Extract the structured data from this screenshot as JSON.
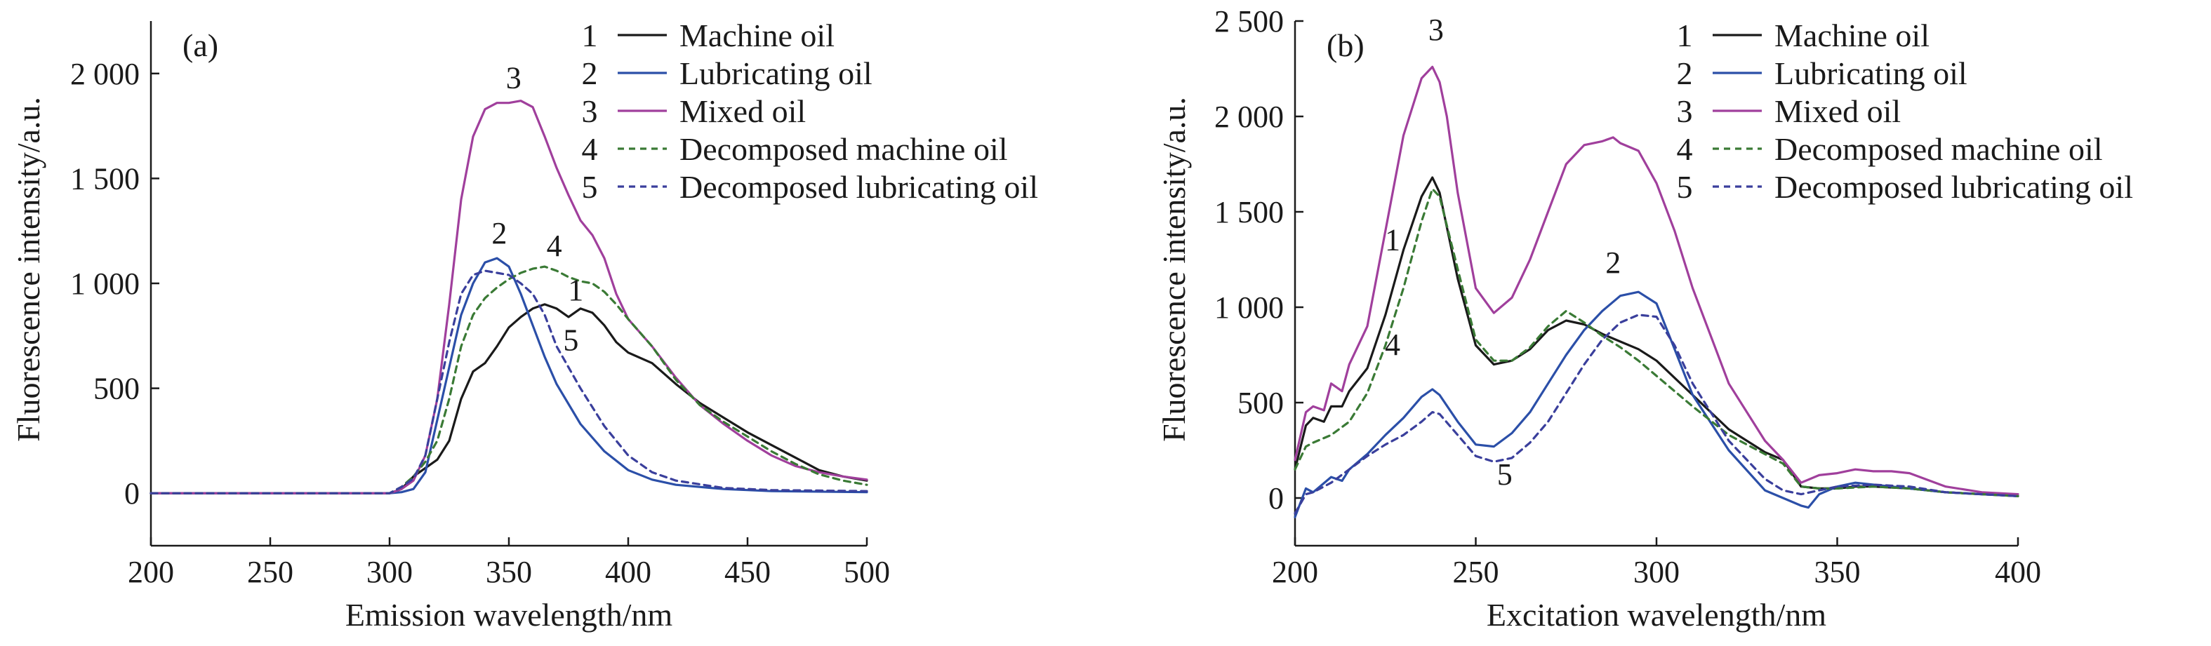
{
  "chart_data": [
    {
      "type": "line",
      "panel_label": "(a)",
      "xlabel": "Emission wavelength/nm",
      "ylabel": "Fluorescence intensity/a.u.",
      "xlim": [
        200,
        500
      ],
      "ylim": [
        -250,
        2250
      ],
      "xticks": [
        200,
        250,
        300,
        350,
        400,
        450,
        500
      ],
      "xtick_labels": [
        "200",
        "250",
        "300",
        "350",
        "400",
        "450",
        "500"
      ],
      "yticks": [
        0,
        500,
        1000,
        1500,
        2000
      ],
      "ytick_labels": [
        "0",
        "500",
        "1 000",
        "1 500",
        "2 000"
      ],
      "legend_position": "top-right",
      "series": [
        {
          "name": "Machine oil",
          "num": "1",
          "color": "#1a1a1a",
          "dash": "solid",
          "x": [
            200,
            250,
            280,
            300,
            305,
            310,
            320,
            325,
            330,
            335,
            340,
            345,
            350,
            355,
            360,
            365,
            370,
            375,
            380,
            385,
            390,
            395,
            400,
            410,
            420,
            430,
            440,
            450,
            460,
            470,
            480,
            490,
            500
          ],
          "y": [
            0,
            0,
            0,
            0,
            20,
            80,
            160,
            250,
            450,
            580,
            620,
            700,
            790,
            840,
            880,
            900,
            880,
            840,
            880,
            860,
            800,
            720,
            670,
            620,
            520,
            430,
            360,
            290,
            230,
            170,
            110,
            80,
            60
          ]
        },
        {
          "name": "Lubricating oil",
          "num": "2",
          "color": "#2b4fa8",
          "dash": "solid",
          "x": [
            200,
            280,
            300,
            305,
            310,
            315,
            320,
            325,
            330,
            335,
            340,
            345,
            350,
            355,
            360,
            365,
            370,
            380,
            390,
            400,
            410,
            420,
            440,
            460,
            500
          ],
          "y": [
            0,
            0,
            0,
            5,
            20,
            100,
            350,
            600,
            850,
            1000,
            1100,
            1120,
            1080,
            950,
            800,
            650,
            520,
            330,
            200,
            110,
            65,
            40,
            20,
            10,
            5
          ],
          "label_at": [
            346,
            1190
          ]
        },
        {
          "name": "Mixed oil",
          "num": "3",
          "color": "#a03f9c",
          "dash": "solid",
          "x": [
            200,
            300,
            305,
            310,
            315,
            320,
            325,
            330,
            335,
            340,
            345,
            350,
            355,
            360,
            365,
            370,
            375,
            380,
            385,
            390,
            395,
            400,
            410,
            420,
            430,
            440,
            450,
            460,
            470,
            480,
            490,
            500
          ],
          "y": [
            0,
            0,
            20,
            60,
            180,
            450,
            900,
            1400,
            1700,
            1830,
            1860,
            1860,
            1870,
            1840,
            1700,
            1550,
            1420,
            1300,
            1230,
            1120,
            950,
            830,
            700,
            550,
            420,
            330,
            250,
            180,
            130,
            100,
            80,
            65
          ],
          "label_at": [
            352,
            1930
          ]
        },
        {
          "name": "Decomposed machine oil",
          "num": "4",
          "color": "#3a7a35",
          "dash": "short",
          "x": [
            200,
            300,
            305,
            310,
            315,
            320,
            325,
            330,
            335,
            340,
            345,
            350,
            355,
            360,
            365,
            370,
            375,
            380,
            385,
            390,
            395,
            400,
            410,
            420,
            430,
            440,
            450,
            460,
            470,
            480,
            490,
            500
          ],
          "y": [
            0,
            0,
            30,
            80,
            150,
            250,
            450,
            700,
            850,
            930,
            980,
            1020,
            1050,
            1070,
            1080,
            1060,
            1030,
            1010,
            1000,
            960,
            900,
            830,
            700,
            540,
            420,
            340,
            270,
            200,
            140,
            90,
            60,
            40
          ],
          "label_at": [
            369,
            1130
          ]
        },
        {
          "name": "Decomposed lubricating oil",
          "num": "5",
          "color": "#3a3f9c",
          "dash": "short",
          "x": [
            200,
            300,
            305,
            310,
            315,
            320,
            325,
            330,
            335,
            340,
            345,
            350,
            355,
            360,
            365,
            370,
            380,
            390,
            400,
            410,
            420,
            440,
            460,
            500
          ],
          "y": [
            0,
            0,
            30,
            70,
            180,
            450,
            720,
            950,
            1040,
            1060,
            1050,
            1040,
            1000,
            950,
            850,
            700,
            500,
            320,
            180,
            100,
            60,
            25,
            15,
            10
          ]
        }
      ],
      "curve_labels": [
        {
          "text": "1",
          "x": 378,
          "y": 920
        },
        {
          "text": "5",
          "x": 376,
          "y": 680
        }
      ]
    },
    {
      "type": "line",
      "panel_label": "(b)",
      "xlabel": "Excitation wavelength/nm",
      "ylabel": "Fluorescence intensity/a.u.",
      "xlim": [
        200,
        400
      ],
      "ylim": [
        -250,
        2500
      ],
      "xticks": [
        200,
        250,
        300,
        350,
        400
      ],
      "xtick_labels": [
        "200",
        "250",
        "300",
        "350",
        "400"
      ],
      "yticks": [
        0,
        500,
        1000,
        1500,
        2000,
        2500
      ],
      "ytick_labels": [
        "0",
        "500",
        "1 000",
        "1 500",
        "2 000",
        "2 500"
      ],
      "legend_position": "top-right",
      "series": [
        {
          "name": "Machine oil",
          "num": "1",
          "color": "#1a1a1a",
          "dash": "solid",
          "x": [
            200,
            203,
            205,
            208,
            210,
            213,
            215,
            220,
            225,
            230,
            235,
            238,
            240,
            245,
            250,
            255,
            260,
            265,
            270,
            275,
            280,
            285,
            290,
            295,
            300,
            310,
            320,
            330,
            335,
            340,
            345,
            350,
            355,
            360,
            370,
            380,
            390,
            400
          ],
          "y": [
            150,
            380,
            420,
            400,
            480,
            480,
            560,
            680,
            960,
            1300,
            1580,
            1680,
            1600,
            1150,
            800,
            700,
            720,
            780,
            880,
            930,
            910,
            860,
            820,
            780,
            720,
            540,
            360,
            240,
            200,
            60,
            50,
            50,
            60,
            60,
            50,
            30,
            20,
            10
          ],
          "label_at": [
            227,
            1300
          ]
        },
        {
          "name": "Lubricating oil",
          "num": "2",
          "color": "#2b4fa8",
          "dash": "solid",
          "x": [
            200,
            203,
            205,
            210,
            213,
            215,
            220,
            225,
            230,
            235,
            238,
            240,
            245,
            250,
            255,
            260,
            265,
            270,
            275,
            280,
            285,
            290,
            295,
            300,
            305,
            310,
            320,
            330,
            335,
            340,
            342,
            345,
            350,
            355,
            360,
            370,
            380,
            400
          ],
          "y": [
            -100,
            50,
            30,
            110,
            90,
            150,
            230,
            330,
            420,
            530,
            570,
            540,
            400,
            280,
            270,
            340,
            450,
            600,
            750,
            880,
            980,
            1060,
            1080,
            1020,
            780,
            540,
            250,
            40,
            0,
            -40,
            -50,
            20,
            60,
            80,
            70,
            50,
            30,
            10
          ],
          "label_at": [
            288,
            1180
          ]
        },
        {
          "name": "Mixed oil",
          "num": "3",
          "color": "#a03f9c",
          "dash": "solid",
          "x": [
            200,
            203,
            205,
            208,
            210,
            213,
            215,
            220,
            225,
            230,
            235,
            238,
            240,
            242,
            245,
            250,
            255,
            260,
            265,
            270,
            275,
            280,
            285,
            288,
            290,
            295,
            300,
            305,
            310,
            315,
            320,
            330,
            335,
            340,
            345,
            350,
            355,
            360,
            365,
            370,
            380,
            390,
            400
          ],
          "y": [
            200,
            450,
            480,
            460,
            600,
            560,
            700,
            900,
            1400,
            1900,
            2200,
            2260,
            2180,
            2000,
            1600,
            1100,
            970,
            1050,
            1250,
            1500,
            1750,
            1850,
            1870,
            1890,
            1860,
            1820,
            1650,
            1400,
            1100,
            850,
            600,
            300,
            200,
            80,
            120,
            130,
            150,
            140,
            140,
            130,
            60,
            30,
            20
          ],
          "label_at": [
            239,
            2400
          ]
        },
        {
          "name": "Decomposed machine oil",
          "num": "4",
          "color": "#3a7a35",
          "dash": "short",
          "x": [
            200,
            203,
            205,
            210,
            215,
            220,
            225,
            230,
            235,
            238,
            240,
            245,
            250,
            255,
            260,
            265,
            270,
            275,
            280,
            285,
            290,
            295,
            300,
            310,
            320,
            330,
            335,
            340,
            345,
            350,
            360,
            370,
            380,
            400
          ],
          "y": [
            150,
            270,
            290,
            330,
            400,
            550,
            800,
            1100,
            1450,
            1620,
            1580,
            1200,
            830,
            720,
            720,
            790,
            900,
            980,
            920,
            850,
            790,
            720,
            640,
            480,
            330,
            230,
            180,
            60,
            50,
            50,
            60,
            50,
            30,
            10
          ],
          "label_at": [
            227,
            750
          ]
        },
        {
          "name": "Decomposed lubricating oil",
          "num": "5",
          "color": "#3a3f9c",
          "dash": "short",
          "x": [
            200,
            203,
            205,
            210,
            215,
            220,
            225,
            230,
            235,
            238,
            240,
            245,
            250,
            255,
            260,
            265,
            270,
            275,
            280,
            285,
            290,
            295,
            300,
            305,
            310,
            320,
            330,
            335,
            340,
            345,
            350,
            360,
            370,
            380,
            400
          ],
          "y": [
            -80,
            20,
            30,
            80,
            150,
            220,
            280,
            330,
            400,
            450,
            440,
            330,
            220,
            190,
            210,
            290,
            400,
            550,
            700,
            830,
            920,
            960,
            950,
            800,
            600,
            300,
            100,
            40,
            20,
            40,
            60,
            70,
            60,
            30,
            10
          ],
          "label_at": [
            258,
            70
          ]
        }
      ],
      "curve_labels": []
    }
  ]
}
